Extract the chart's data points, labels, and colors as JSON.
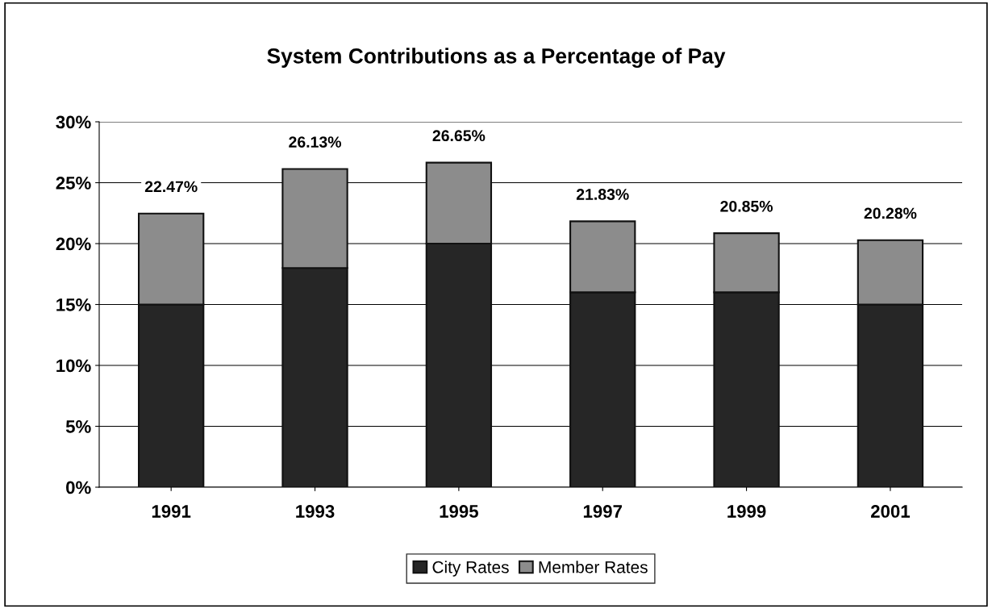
{
  "chart_data": {
    "type": "bar",
    "title": "System Contributions as a Percentage of Pay",
    "categories": [
      "1991",
      "1993",
      "1995",
      "1997",
      "1999",
      "2001"
    ],
    "stacked": true,
    "series": [
      {
        "name": "City Rates",
        "color": "#262626",
        "values": [
          15,
          18,
          20,
          16,
          16,
          15
        ]
      },
      {
        "name": "Member Rates",
        "color": "#8c8c8c",
        "values": [
          7.47,
          8.13,
          6.65,
          5.83,
          4.85,
          5.28
        ]
      }
    ],
    "totals": [
      "22.47%",
      "26.13%",
      "26.65%",
      "21.83%",
      "20.85%",
      "20.28%"
    ],
    "ylim": [
      0,
      30
    ],
    "yticks": [
      {
        "value": 0,
        "label": "0%"
      },
      {
        "value": 5,
        "label": "5%"
      },
      {
        "value": 10,
        "label": "10%"
      },
      {
        "value": 15,
        "label": "15%"
      },
      {
        "value": 20,
        "label": "20%"
      },
      {
        "value": 25,
        "label": "25%"
      },
      {
        "value": 30,
        "label": "30%"
      }
    ],
    "grid": "y",
    "legend": "bottom"
  }
}
